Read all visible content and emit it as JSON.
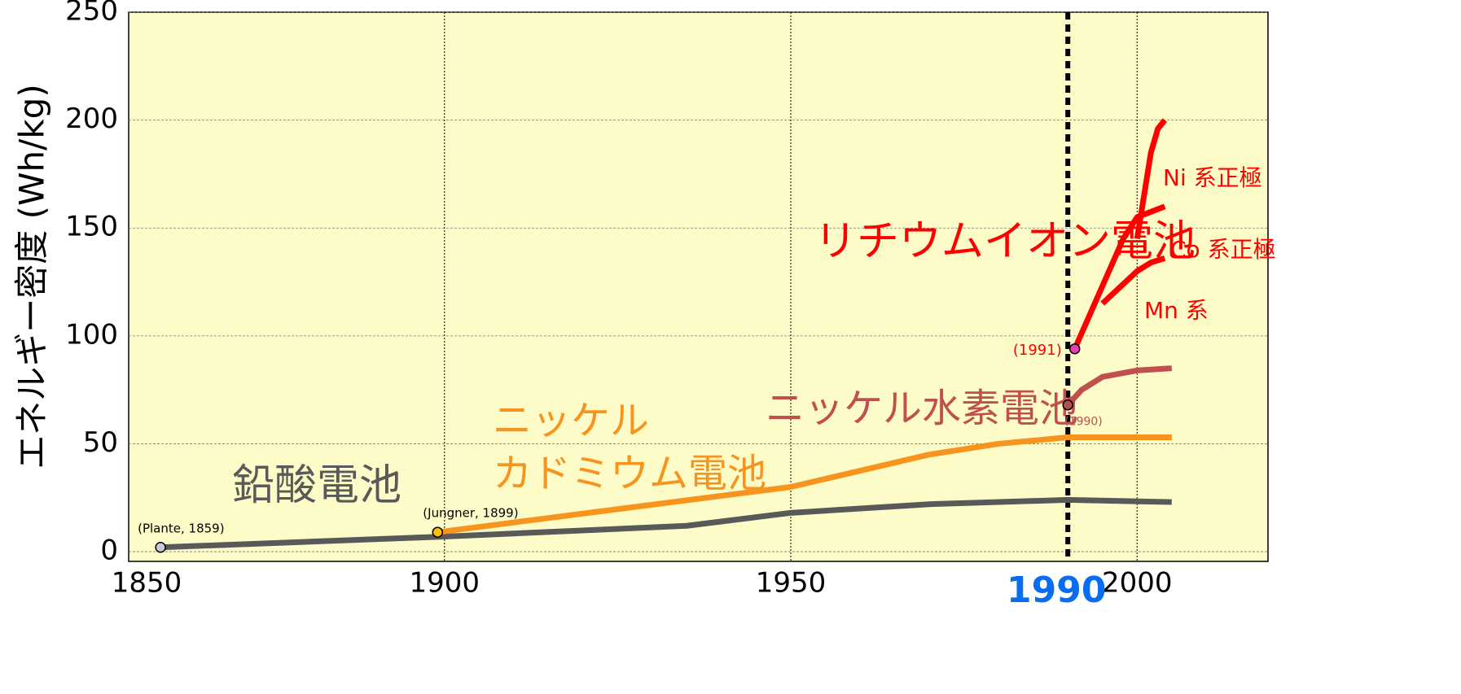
{
  "chart_data": {
    "type": "line",
    "y_label": "エネルギー密度 (Wh/kg)",
    "xlim": [
      1854.4,
      2018.9
    ],
    "xticks": [
      1850,
      1900,
      1950,
      2000
    ],
    "ylim": [
      -4.5,
      250
    ],
    "yticks": [
      0,
      50,
      100,
      150,
      200,
      250
    ],
    "grid": true,
    "background": "#fdfcc9",
    "highlight_x": 1990,
    "highlight_color": "#0a6cf0",
    "group_label": "リチウムイオン電池",
    "group_color": "#ff0000",
    "series": [
      {
        "name": "鉛酸電池",
        "color": "#595959",
        "x": [
          1859,
          1900,
          1935,
          1950,
          1970,
          1990,
          2005
        ],
        "values": [
          2,
          7,
          12,
          18,
          22,
          24,
          23
        ],
        "start_label": "(Plante, 1859)",
        "marker_color": "#c8c8d8"
      },
      {
        "name_lines": [
          "ニッケル",
          "カドミウム電池"
        ],
        "color": "#f7941d",
        "x": [
          1899,
          1950,
          1970,
          1980,
          1990,
          2005
        ],
        "values": [
          9,
          30,
          45,
          50,
          53,
          53
        ],
        "start_label": "(Jungner, 1899)",
        "marker_color": "#ffc000"
      },
      {
        "name": "ニッケル水素電池",
        "color": "#c0504d",
        "x": [
          1990,
          1992,
          1995,
          2000,
          2005
        ],
        "values": [
          68,
          75,
          81,
          84,
          85
        ],
        "start_label": "(1990)",
        "marker_color": "#b05050"
      },
      {
        "name": "Co 系正極",
        "color": "#ff0000",
        "x": [
          1991,
          1998,
          2000,
          2004
        ],
        "values": [
          94,
          145,
          155,
          160
        ],
        "start_label": "(1991)",
        "marker_color": "#e040b0"
      },
      {
        "name": "Ni 系正極",
        "color": "#ff0000",
        "x": [
          2000,
          2002,
          2003,
          2004
        ],
        "values": [
          145,
          185,
          196,
          200
        ]
      },
      {
        "name": "Mn 系",
        "color": "#ff0000",
        "x": [
          1995,
          2000,
          2002,
          2004
        ],
        "values": [
          115,
          130,
          134,
          136
        ]
      }
    ]
  }
}
